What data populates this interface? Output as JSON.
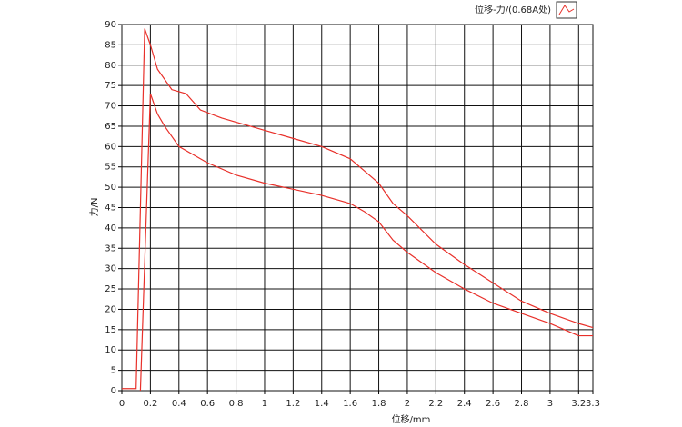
{
  "chart_data": {
    "type": "line",
    "xlabel": "位移/mm",
    "ylabel": "力/N",
    "xlim": [
      0,
      3.3
    ],
    "ylim": [
      0,
      90
    ],
    "xticks": [
      0,
      0.2,
      0.4,
      0.6,
      0.8,
      1,
      1.2,
      1.4,
      1.6,
      1.8,
      2,
      2.2,
      2.4,
      2.6,
      2.8,
      3,
      3.2,
      3.3
    ],
    "yticks": [
      0,
      5,
      10,
      15,
      20,
      25,
      30,
      35,
      40,
      45,
      50,
      55,
      60,
      65,
      70,
      75,
      80,
      85,
      90
    ],
    "grid": true,
    "legend": "top-right",
    "series": [
      {
        "name": "位移-力/(0.68A处)",
        "color": "#e8302a",
        "x": [
          0,
          0.1,
          0.16,
          0.2,
          0.25,
          0.35,
          0.45,
          0.55,
          0.7,
          0.9,
          1.0,
          1.2,
          1.4,
          1.6,
          1.7,
          1.8,
          1.9,
          2.0,
          2.2,
          2.4,
          2.6,
          2.8,
          3.0,
          3.2,
          3.3
        ],
        "values": [
          0.5,
          0.5,
          89,
          85,
          79,
          74,
          73,
          69,
          67,
          65,
          64,
          62,
          60,
          57,
          54,
          51,
          46,
          43,
          36,
          31,
          26.5,
          22,
          19,
          16.5,
          15.5
        ]
      },
      {
        "color": "#e8302a",
        "x": [
          0.13,
          0.2,
          0.25,
          0.3,
          0.4,
          0.6,
          0.8,
          1.0,
          1.2,
          1.4,
          1.6,
          1.7,
          1.8,
          1.9,
          2.0,
          2.2,
          2.4,
          2.6,
          2.8,
          3.0,
          3.2,
          3.3
        ],
        "values": [
          0,
          73,
          68,
          65,
          60,
          56,
          53,
          51,
          49.5,
          48,
          46,
          44,
          41.5,
          37,
          34,
          29,
          25,
          21.5,
          19,
          16.5,
          13.5,
          13.5
        ]
      }
    ]
  }
}
